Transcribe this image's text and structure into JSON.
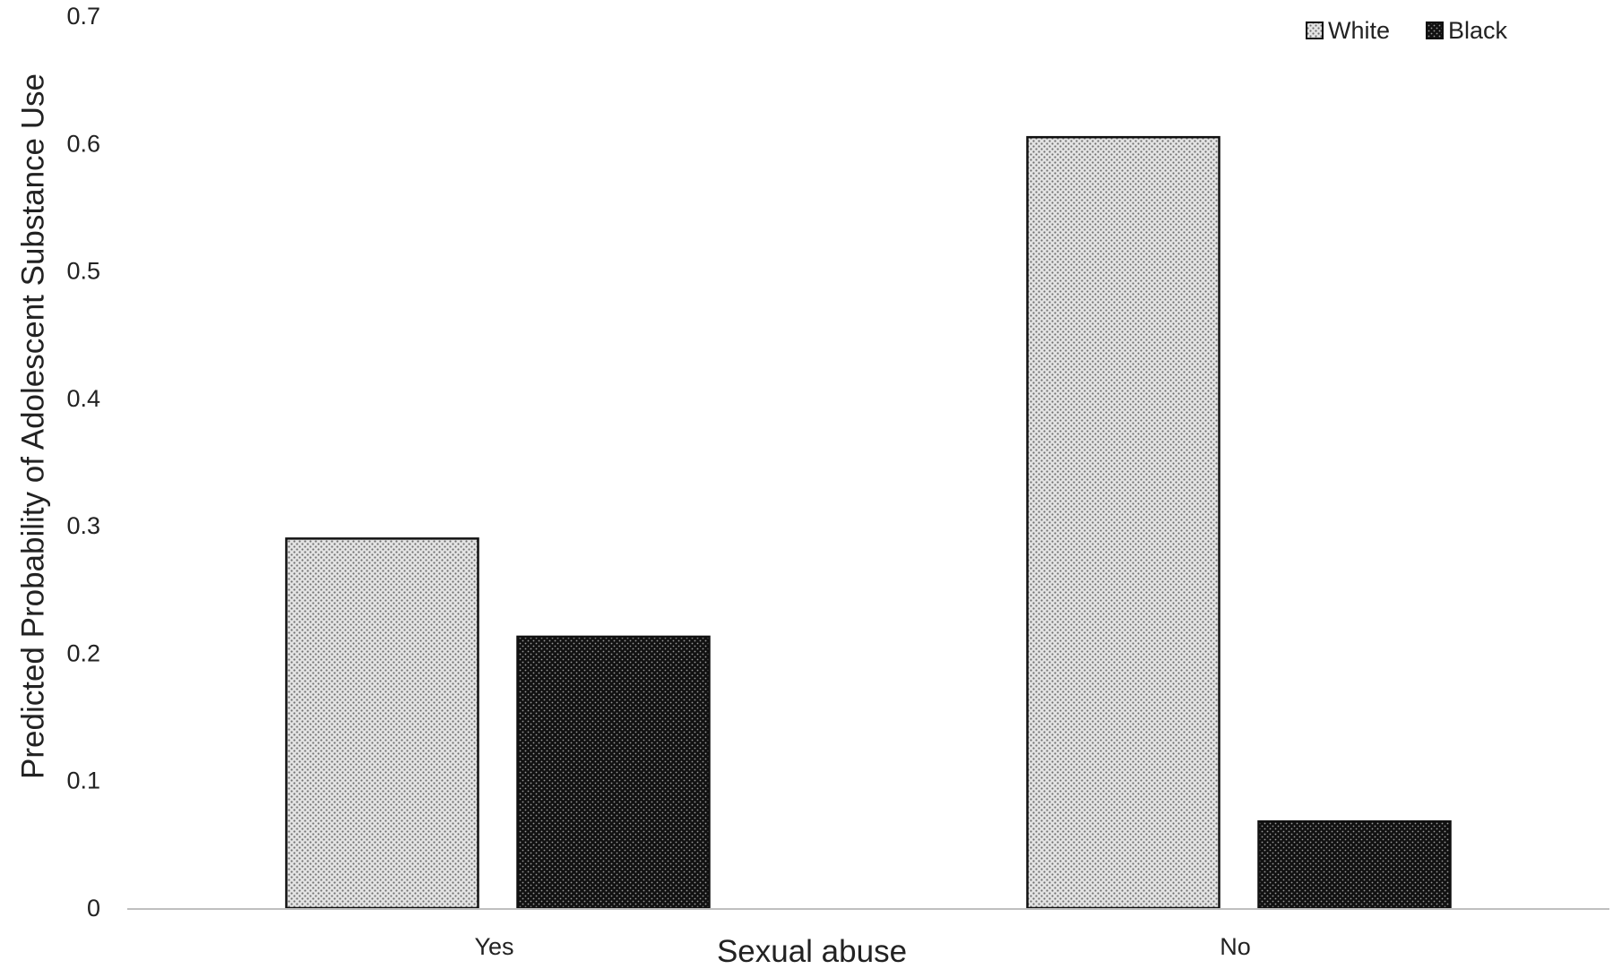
{
  "chart_data": {
    "type": "bar",
    "title": "",
    "xlabel": "Sexual abuse",
    "ylabel": "Predicted Probability of Adolescent Substance Use",
    "categories": [
      "Yes",
      "No"
    ],
    "series": [
      {
        "name": "White",
        "values": [
          0.29,
          0.605
        ],
        "color": "#9a9a9a"
      },
      {
        "name": "Black",
        "values": [
          0.213,
          0.068
        ],
        "color": "#1a1a1a"
      }
    ],
    "ylim": [
      0,
      0.7
    ],
    "yticks": [
      "0",
      "0.1",
      "0.2",
      "0.3",
      "0.4",
      "0.5",
      "0.6",
      "0.7"
    ],
    "grid": false,
    "legend_position": "top-right"
  }
}
